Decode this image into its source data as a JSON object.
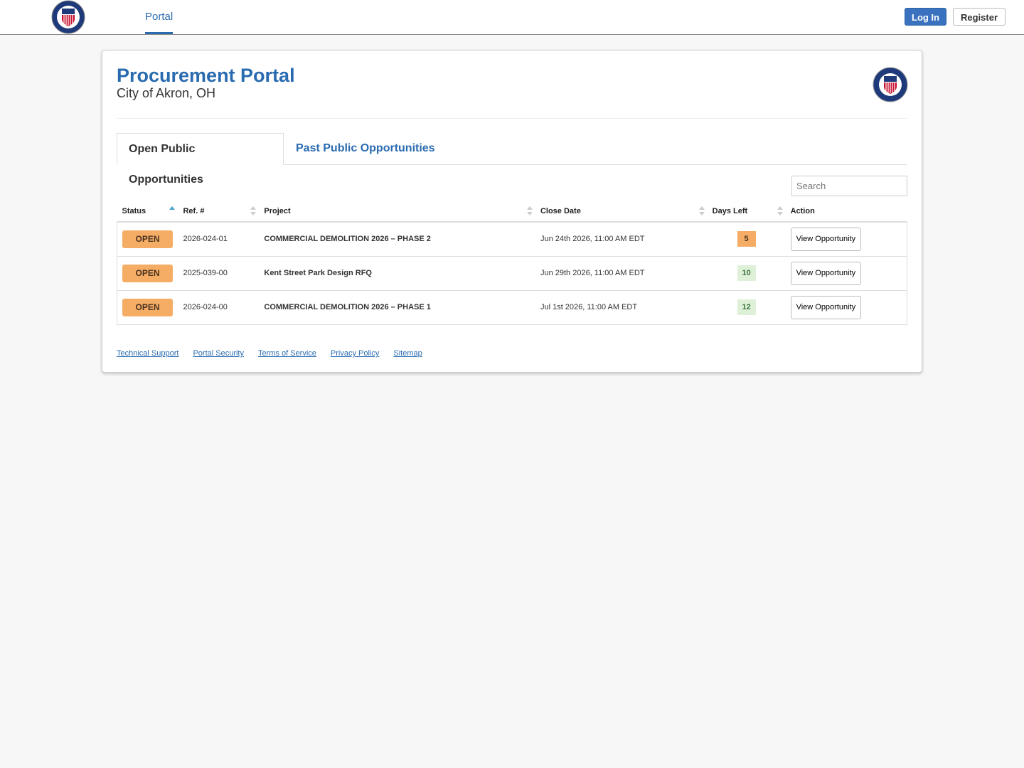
{
  "nav": {
    "link": "Portal",
    "login": "Log In",
    "register": "Register"
  },
  "header": {
    "title": "Procurement Portal",
    "subtitle": "City of Akron, OH"
  },
  "tabs": [
    "Open Public Opportunities",
    "Past Public Opportunities"
  ],
  "search": {
    "placeholder": "Search"
  },
  "table": {
    "columns": [
      "Status",
      "Ref. #",
      "Project",
      "Close Date",
      "Days Left",
      "Action"
    ],
    "rows": [
      [
        "OPEN",
        "2026-024-01",
        "COMMERCIAL DEMOLITION 2026 – PHASE 2",
        "Jun 24th 2026, 11:00 AM EDT",
        "5",
        "View Opportunity"
      ],
      [
        "OPEN",
        "2025-039-00",
        "Kent Street Park Design RFQ",
        "Jun 29th 2026, 11:00 AM EDT",
        "10",
        "View Opportunity"
      ],
      [
        "OPEN",
        "2026-024-00",
        "COMMERCIAL DEMOLITION 2026 – PHASE 1",
        "Jul 1st 2026, 11:00 AM EDT",
        "12",
        "View Opportunity"
      ]
    ]
  },
  "footer": {
    "links": [
      "Technical Support",
      "Portal Security",
      "Terms of Service",
      "Privacy Policy",
      "Sitemap"
    ]
  }
}
